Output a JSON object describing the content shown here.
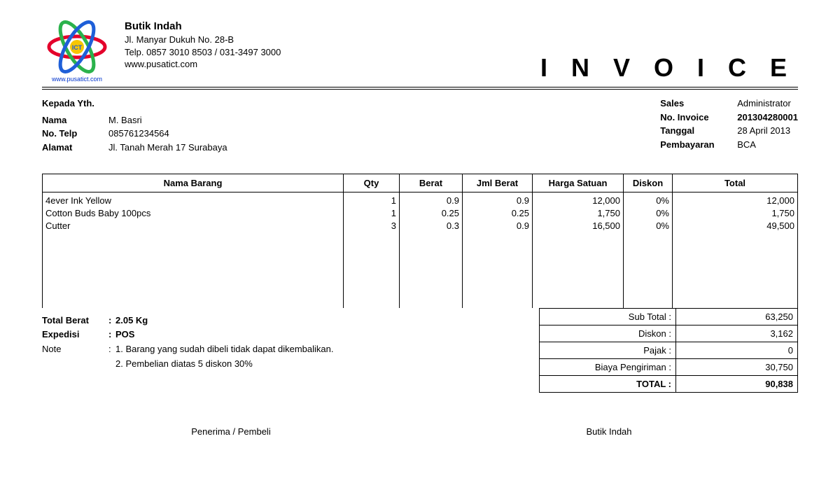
{
  "company": {
    "name": "Butik Indah",
    "address": "Jl. Manyar Dukuh No. 28-B",
    "phone": "Telp. 0857 3010 8503 / 031-3497 3000",
    "website": "www.pusatict.com",
    "logo_caption": "www.pusatict.com",
    "logo_colors": {
      "red": "#e4002b",
      "green": "#2bb24c",
      "blue": "#1e5fd8",
      "yellow": "#f7c600"
    }
  },
  "document": {
    "title": "I N V O I C E"
  },
  "buyer": {
    "heading": "Kepada Yth.",
    "labels": {
      "nama": "Nama",
      "telp": "No. Telp",
      "alamat": "Alamat"
    },
    "nama": "M. Basri",
    "telp": "085761234564",
    "alamat": "Jl. Tanah Merah 17 Surabaya"
  },
  "invoice_meta": {
    "labels": {
      "sales": "Sales",
      "no_invoice": "No. Invoice",
      "tanggal": "Tanggal",
      "pembayaran": "Pembayaran"
    },
    "sales": "Administrator",
    "no_invoice": "201304280001",
    "tanggal": "28 April 2013",
    "pembayaran": "BCA"
  },
  "items": {
    "headers": {
      "nama": "Nama Barang",
      "qty": "Qty",
      "berat": "Berat",
      "jml_berat": "Jml Berat",
      "harga": "Harga Satuan",
      "diskon": "Diskon",
      "total": "Total"
    },
    "rows": [
      {
        "nama": "4ever Ink Yellow",
        "qty": "1",
        "berat": "0.9",
        "jml_berat": "0.9",
        "harga": "12,000",
        "diskon": "0%",
        "total": "12,000"
      },
      {
        "nama": "Cotton Buds Baby 100pcs",
        "qty": "1",
        "berat": "0.25",
        "jml_berat": "0.25",
        "harga": "1,750",
        "diskon": "0%",
        "total": "1,750"
      },
      {
        "nama": "Cutter",
        "qty": "3",
        "berat": "0.3",
        "jml_berat": "0.9",
        "harga": "16,500",
        "diskon": "0%",
        "total": "49,500"
      }
    ]
  },
  "summary_left": {
    "total_berat_label": "Total Berat",
    "total_berat_value": "2.05 Kg",
    "expedisi_label": "Expedisi",
    "expedisi_value": "POS",
    "note_label": "Note",
    "note1": "1. Barang yang sudah dibeli tidak dapat dikembalikan.",
    "note2": "2. Pembelian diatas 5 diskon 30%"
  },
  "totals": {
    "labels": {
      "subtotal": "Sub Total :",
      "diskon": "Diskon :",
      "pajak": "Pajak :",
      "shipping": "Biaya Pengiriman :",
      "grand": "TOTAL :"
    },
    "subtotal": "63,250",
    "diskon": "3,162",
    "pajak": "0",
    "shipping": "30,750",
    "grand": "90,838"
  },
  "signatures": {
    "left": "Penerima / Pembeli",
    "right": "Butik Indah"
  }
}
